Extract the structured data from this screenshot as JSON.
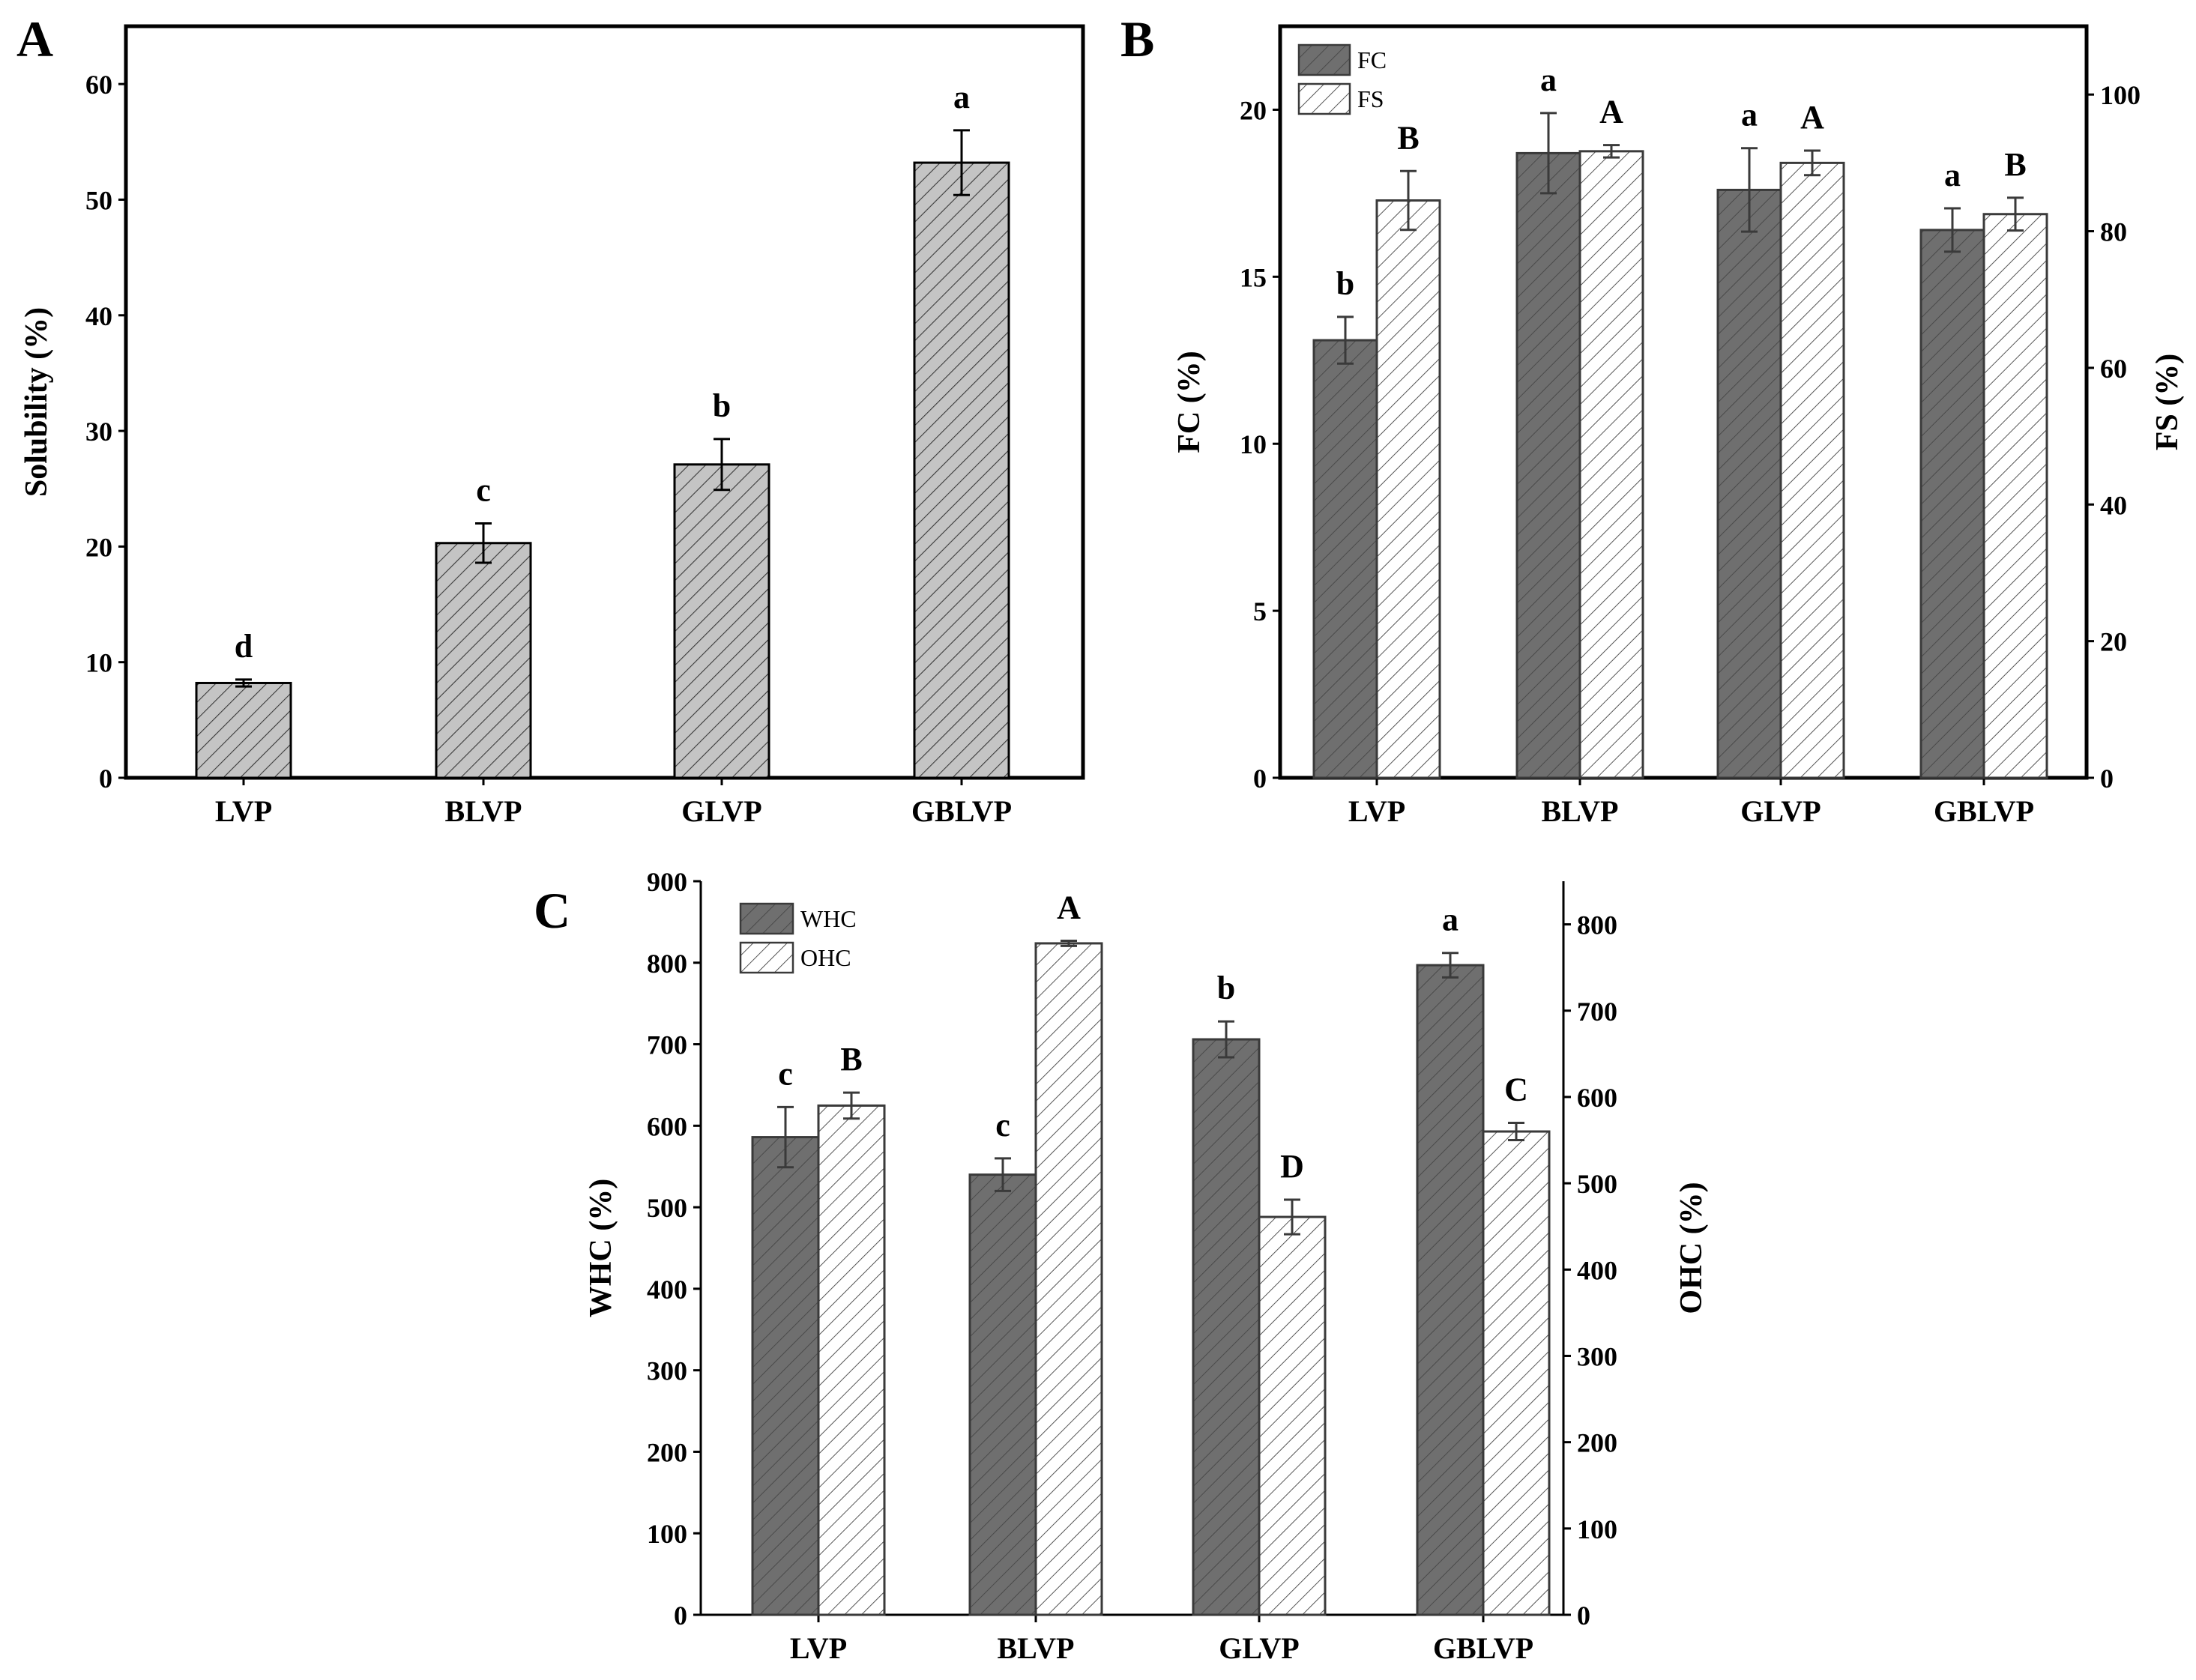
{
  "colors": {
    "dark": "#6f6f6f",
    "light": "#c4c4c4",
    "white": "#ffffff",
    "axis": "#000000",
    "border": "#3a3a3a"
  },
  "chart_data": [
    {
      "id": "A",
      "panel_label": "A",
      "type": "bar",
      "categories": [
        "LVP",
        "BLVP",
        "GLVP",
        "GBLVP"
      ],
      "ylabel": "Solubility (%)",
      "ylim": [
        0,
        65
      ],
      "yticks": [
        "0",
        "10",
        "20",
        "30",
        "40",
        "50",
        "60"
      ],
      "series": [
        {
          "name": "Solubility",
          "axis": "left",
          "style": "light",
          "values": [
            8.2,
            20.3,
            27.1,
            53.2
          ],
          "errors": [
            0.3,
            1.7,
            2.2,
            2.8
          ],
          "letters": [
            "d",
            "c",
            "b",
            "a"
          ]
        }
      ]
    },
    {
      "id": "B",
      "panel_label": "B",
      "type": "bar",
      "categories": [
        "LVP",
        "BLVP",
        "GLVP",
        "GBLVP"
      ],
      "ylabel": "FC (%)",
      "ylabel_right": "FS (%)",
      "ylim": [
        0,
        22.5
      ],
      "ylim_right": [
        0,
        110
      ],
      "yticks": [
        "0",
        "5",
        "10",
        "15",
        "20"
      ],
      "yticks_right": [
        "0",
        "20",
        "40",
        "60",
        "80",
        "100"
      ],
      "legend": [
        "FC",
        "FS"
      ],
      "series": [
        {
          "name": "FC",
          "axis": "left",
          "style": "dark",
          "values": [
            13.1,
            18.7,
            17.6,
            16.4
          ],
          "errors": [
            0.7,
            1.2,
            1.25,
            0.65
          ],
          "letters": [
            "b",
            "a",
            "a",
            "a"
          ]
        },
        {
          "name": "FS",
          "axis": "right",
          "style": "white",
          "values": [
            84.5,
            91.7,
            90.0,
            82.5
          ],
          "errors": [
            4.3,
            0.9,
            1.8,
            2.4
          ],
          "letters": [
            "B",
            "A",
            "A",
            "B"
          ]
        }
      ]
    },
    {
      "id": "C",
      "panel_label": "C",
      "type": "bar",
      "categories": [
        "LVP",
        "BLVP",
        "GLVP",
        "GBLVP"
      ],
      "ylabel": "WHC (%)",
      "ylabel_right": "OHC (%)",
      "ylim": [
        0,
        900
      ],
      "ylim_right": [
        0,
        850
      ],
      "yticks": [
        "0",
        "100",
        "200",
        "300",
        "400",
        "500",
        "600",
        "700",
        "800",
        "900"
      ],
      "yticks_right": [
        "0",
        "100",
        "200",
        "300",
        "400",
        "500",
        "600",
        "700",
        "800"
      ],
      "legend": [
        "WHC",
        "OHC"
      ],
      "series": [
        {
          "name": "WHC",
          "axis": "left",
          "style": "dark",
          "values": [
            586,
            540,
            706,
            797
          ],
          "errors": [
            37,
            20,
            22,
            15
          ],
          "letters": [
            "c",
            "c",
            "b",
            "a"
          ]
        },
        {
          "name": "OHC",
          "axis": "right",
          "style": "white",
          "values": [
            590,
            778,
            461,
            560
          ],
          "errors": [
            15,
            3,
            20,
            10
          ],
          "letters": [
            "B",
            "A",
            "D",
            "C"
          ]
        }
      ]
    }
  ]
}
